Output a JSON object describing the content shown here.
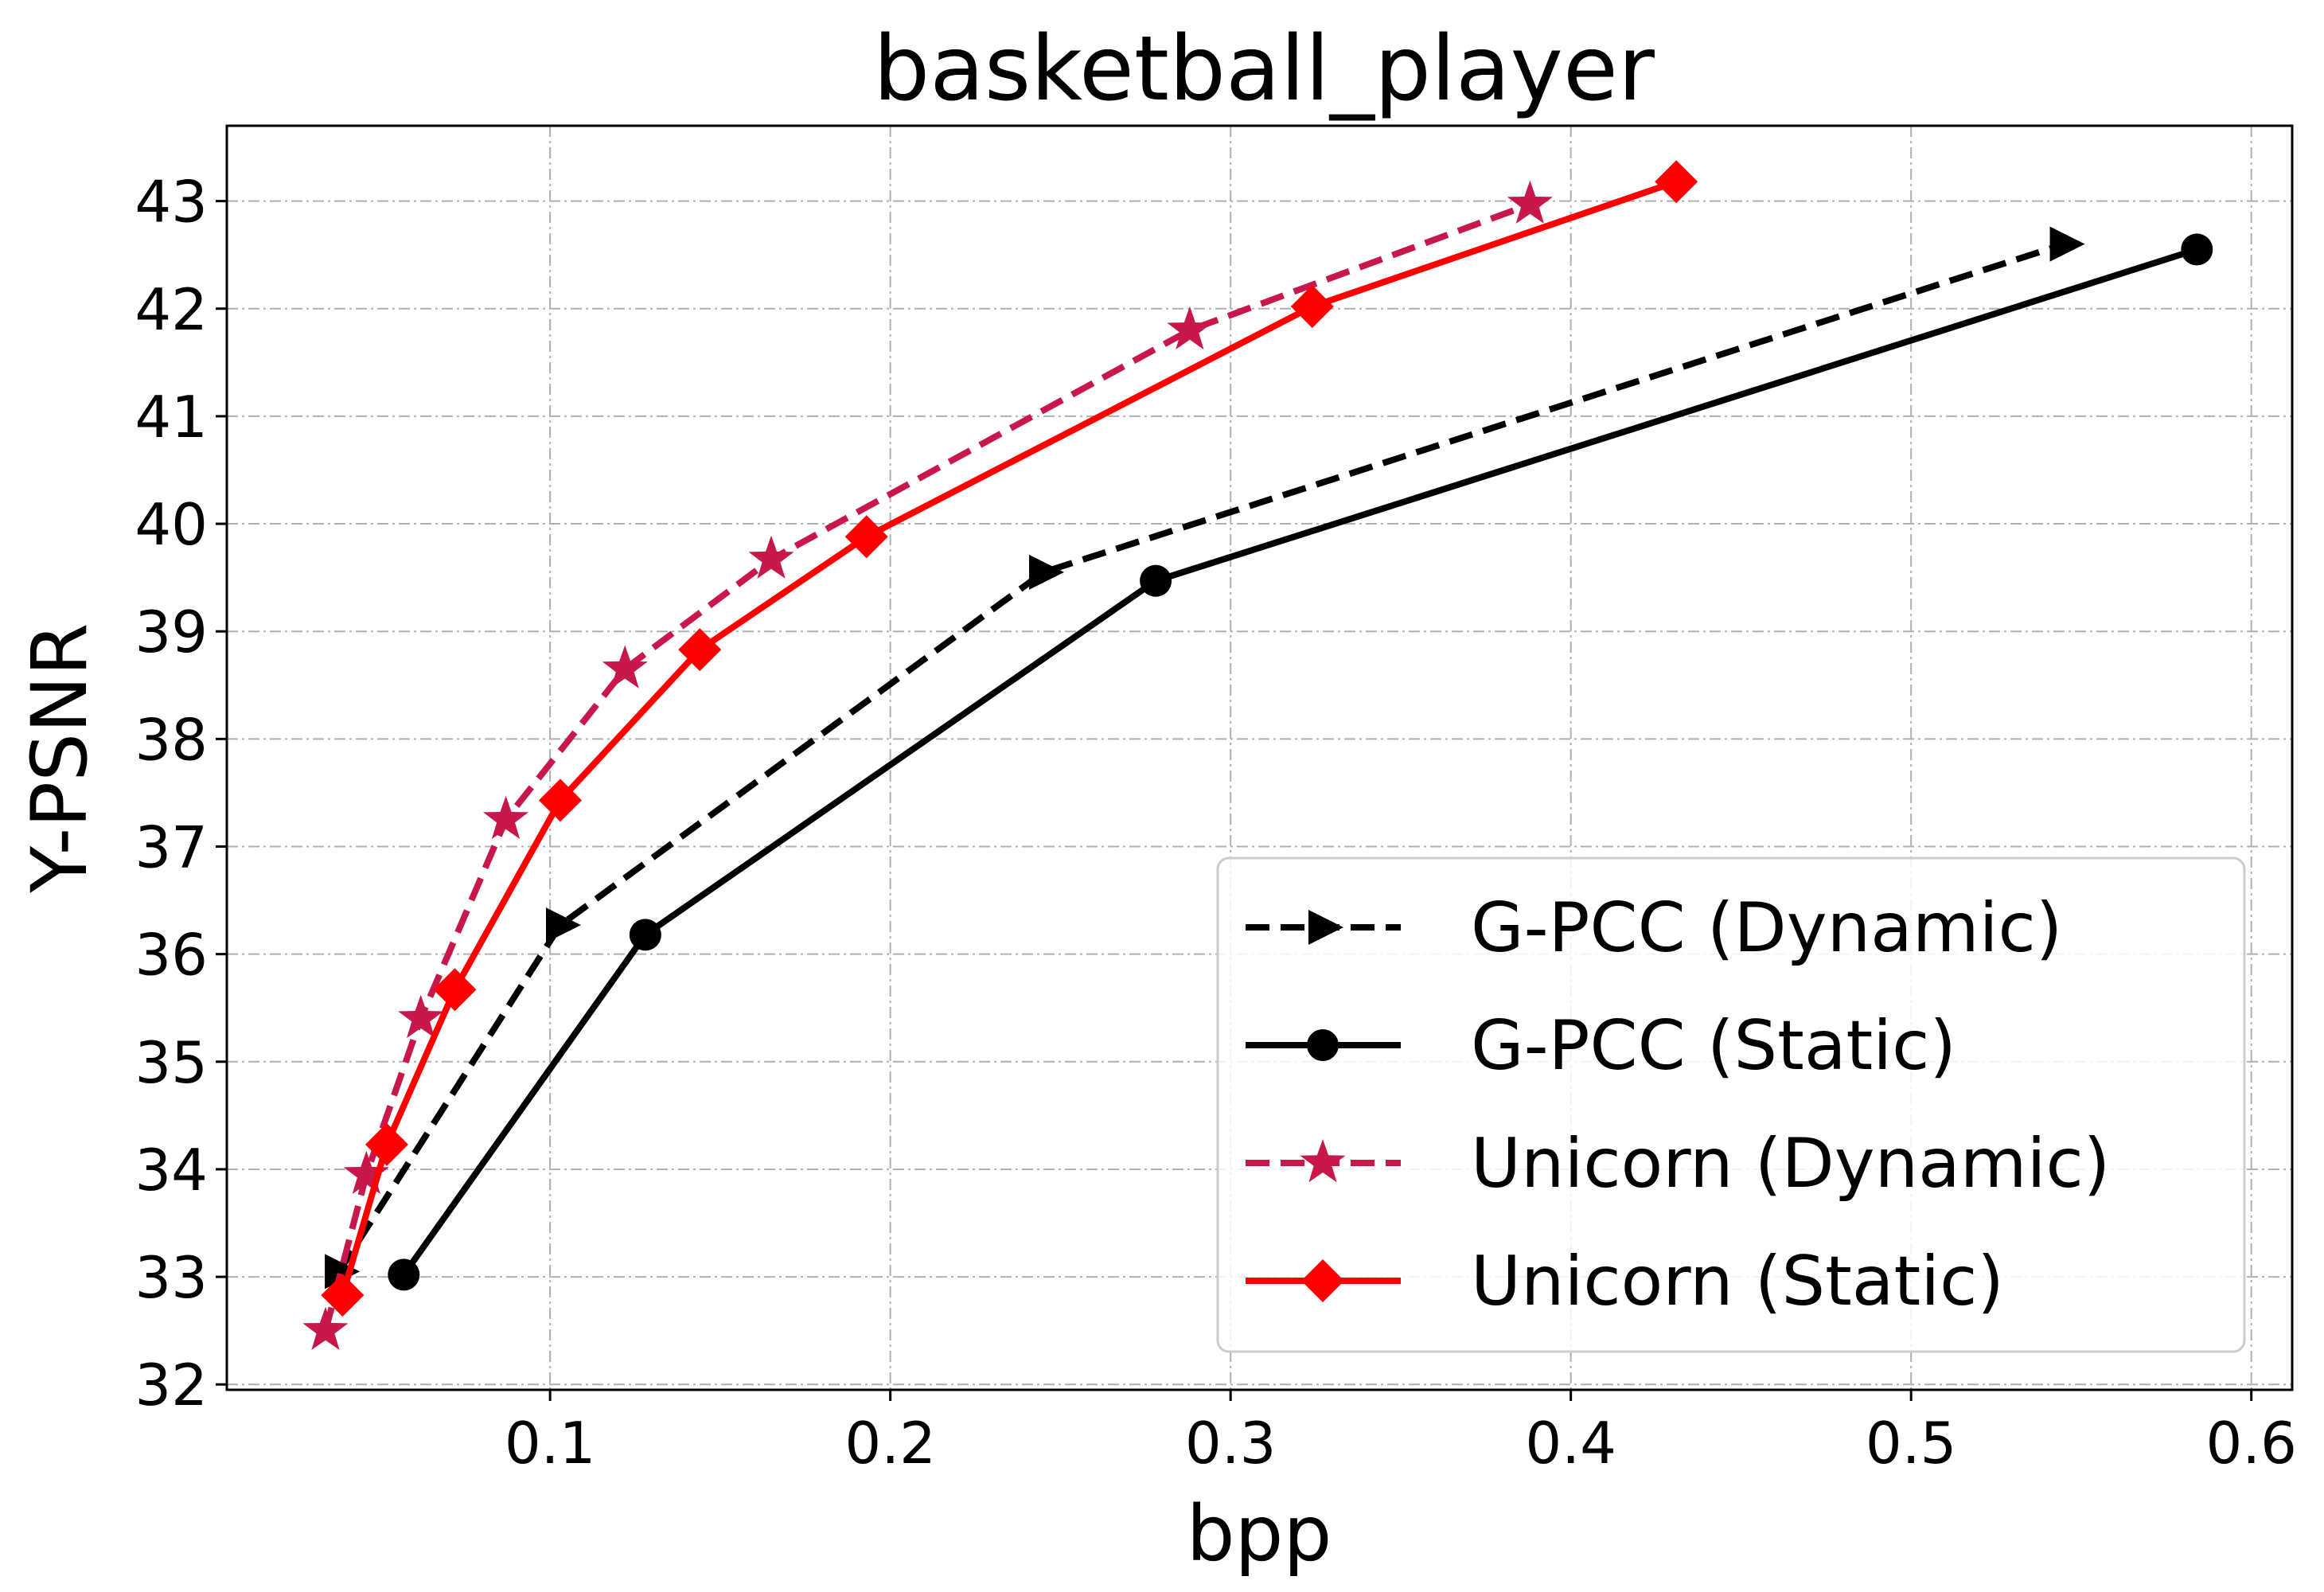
{
  "chart_data": {
    "type": "line",
    "title": "basketball_player",
    "xlabel": "bpp",
    "ylabel": "Y-PSNR",
    "xlim": [
      0.005,
      0.612
    ],
    "ylim": [
      31.95,
      43.7
    ],
    "xticks": [
      0.1,
      0.2,
      0.3,
      0.4,
      0.5,
      0.6
    ],
    "xtick_labels": [
      "0.1",
      "0.2",
      "0.3",
      "0.4",
      "0.5",
      "0.6"
    ],
    "yticks": [
      32,
      33,
      34,
      35,
      36,
      37,
      38,
      39,
      40,
      41,
      42,
      43
    ],
    "ytick_labels": [
      "32",
      "33",
      "34",
      "35",
      "36",
      "37",
      "38",
      "39",
      "40",
      "41",
      "42",
      "43"
    ],
    "grid": true,
    "legend_position": "lower-right",
    "series": [
      {
        "name": "G-PCC (Dynamic)",
        "color": "#000000",
        "line_style": "dashed",
        "marker": "triangle-right",
        "x": [
          0.038,
          0.103,
          0.245,
          0.545
        ],
        "y": [
          33.05,
          36.27,
          39.55,
          42.6
        ]
      },
      {
        "name": "G-PCC (Static)",
        "color": "#000000",
        "line_style": "solid",
        "marker": "circle",
        "x": [
          0.057,
          0.128,
          0.278,
          0.584
        ],
        "y": [
          33.02,
          36.18,
          39.47,
          42.55
        ]
      },
      {
        "name": "Unicorn (Dynamic)",
        "color": "#c8174a",
        "line_style": "dashed",
        "marker": "star",
        "x": [
          0.034,
          0.046,
          0.062,
          0.087,
          0.122,
          0.165,
          0.288,
          0.388
        ],
        "y": [
          32.5,
          33.95,
          35.4,
          37.25,
          38.65,
          39.67,
          41.8,
          42.97
        ]
      },
      {
        "name": "Unicorn (Static)",
        "color": "#ff0000",
        "line_style": "solid",
        "marker": "diamond",
        "x": [
          0.039,
          0.052,
          0.072,
          0.103,
          0.144,
          0.193,
          0.324,
          0.431
        ],
        "y": [
          32.83,
          34.23,
          35.67,
          37.43,
          38.83,
          39.88,
          42.02,
          43.18
        ]
      }
    ]
  }
}
